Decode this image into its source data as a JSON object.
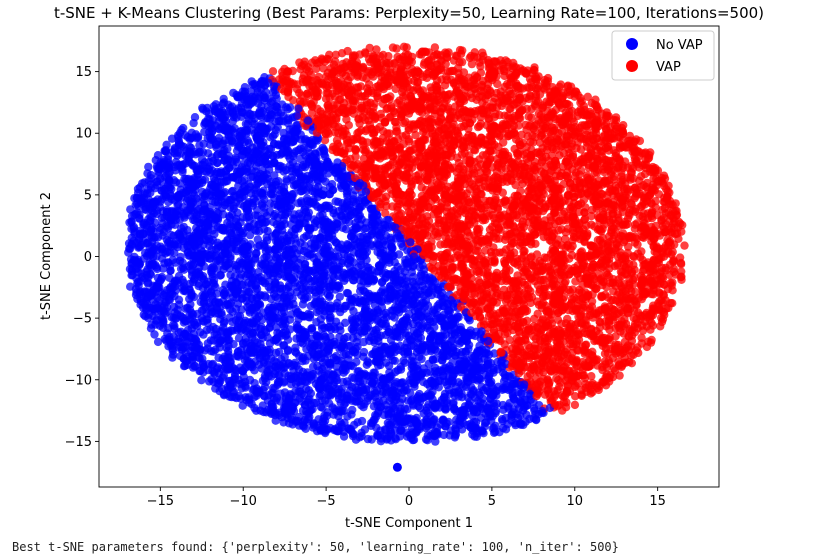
{
  "chart_data": {
    "type": "scatter",
    "title": "t-SNE + K-Means Clustering (Best Params: Perplexity=50, Learning Rate=100, Iterations=500)",
    "xlabel": "t-SNE Component 1",
    "ylabel": "t-SNE Component 2",
    "xlim": [
      -18.7,
      18.7
    ],
    "ylim": [
      -18.7,
      18.7
    ],
    "xticks": [
      -15,
      -10,
      -5,
      0,
      5,
      10,
      15
    ],
    "yticks": [
      -15,
      -10,
      -5,
      0,
      5,
      10,
      15
    ],
    "xtick_labels": [
      "−15",
      "−10",
      "−5",
      "0",
      "5",
      "10",
      "15"
    ],
    "ytick_labels": [
      "−15",
      "−10",
      "−5",
      "0",
      "5",
      "10",
      "15"
    ],
    "grid": false,
    "legend_position": "top-right",
    "series": [
      {
        "name": "No VAP",
        "color": "#0000ff",
        "region": "left/lower-left half of the elliptical point cloud, bounded by boundary line y = -1.6x + 1",
        "approx_center": [
          -6,
          -1
        ],
        "approx_extent": {
          "x": [
            -17.5,
            8
          ],
          "y": [
            -15.7,
            14
          ]
        },
        "outlier_points": [
          [
            -0.7,
            -17.1
          ]
        ]
      },
      {
        "name": "VAP",
        "color": "#ff0000",
        "region": "right/upper-right half of the elliptical point cloud, beyond boundary line y = -1.6x + 1",
        "approx_center": [
          8,
          4
        ],
        "approx_extent": {
          "x": [
            -8,
            17
          ],
          "y": [
            -13.5,
            17.3
          ]
        }
      }
    ]
  },
  "footer_text": "Best t-SNE parameters found: {'perplexity': 50, 'learning_rate': 100, 'n_iter': 500}"
}
